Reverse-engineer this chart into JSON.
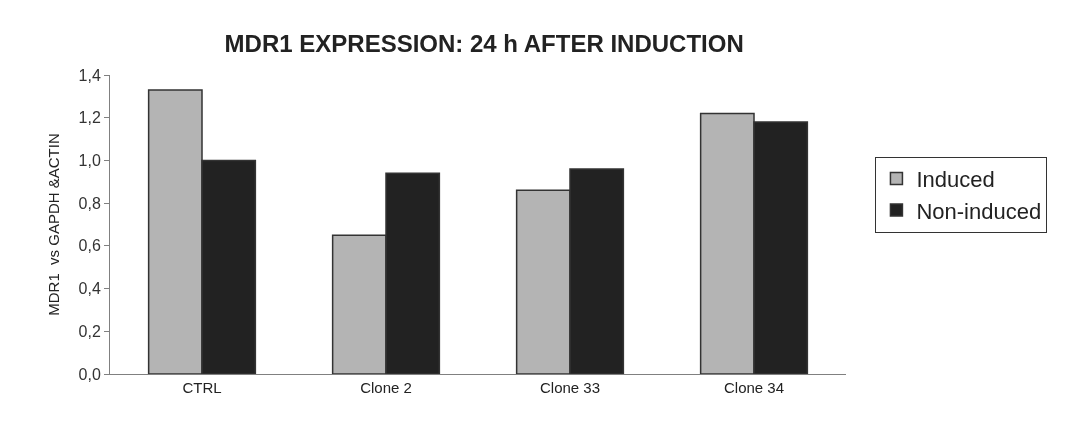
{
  "chart_data": {
    "type": "bar",
    "title": "MDR1 EXPRESSION: 24 h AFTER INDUCTION",
    "ylabel": "MDR1  vs GAPDH &ACTIN",
    "categories": [
      "CTRL",
      "Clone 2",
      "Clone 33",
      "Clone 34"
    ],
    "series": [
      {
        "name": "Induced",
        "color": "#b4b4b4",
        "values": [
          1.33,
          0.65,
          0.86,
          1.22
        ]
      },
      {
        "name": "Non-induced",
        "color": "#222222",
        "values": [
          1.0,
          0.94,
          0.96,
          1.18
        ]
      }
    ],
    "ylim": [
      0,
      1.4
    ],
    "yticks": [
      {
        "value": 0,
        "label": "0,0"
      },
      {
        "value": 0.2,
        "label": "0,2"
      },
      {
        "value": 0.4,
        "label": "0,4"
      },
      {
        "value": 0.6,
        "label": "0,6"
      },
      {
        "value": 0.8,
        "label": "0,8"
      },
      {
        "value": 1.0,
        "label": "1,0"
      },
      {
        "value": 1.2,
        "label": "1,2"
      },
      {
        "value": 1.4,
        "label": "1,4"
      }
    ],
    "legend": "right"
  }
}
